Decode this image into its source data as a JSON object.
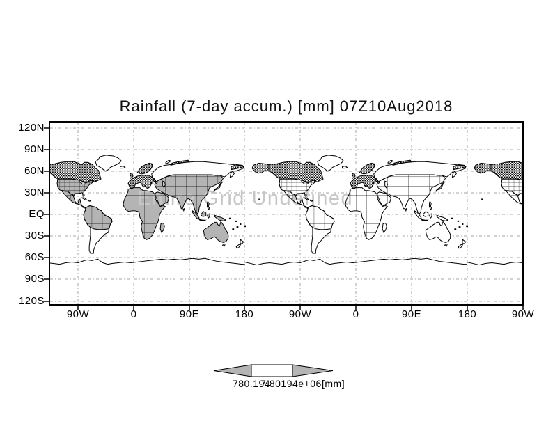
{
  "title": "Rainfall (7-day accum.) [mm] 07Z10Aug2018",
  "map": {
    "watermark": "Entire Grid Undefined"
  },
  "axes": {
    "lat_labels": [
      "120N",
      "90N",
      "60N",
      "30N",
      "EQ",
      "30S",
      "60S",
      "90S",
      "120S"
    ],
    "lon_labels": [
      "90W",
      "0",
      "90E",
      "180",
      "90W",
      "0",
      "90E",
      "180",
      "90W"
    ]
  },
  "colorbar": {
    "left_value": "780.194",
    "right_value": "7.80194e+06",
    "unit": "[mm]"
  },
  "colors": {
    "land_gray": "#b4b4b4",
    "watermark_gray": "#c6c6c6",
    "gridline_gray": "#a4a4a4"
  },
  "chart_data": {
    "type": "heatmap",
    "title": "Rainfall (7-day accum.) [mm] 07Z10Aug2018",
    "subtitle_overlay": "Entire Grid Undefined",
    "projection": "equirectangular lat-lon world map, longitude wrapped twice",
    "x": {
      "label": "",
      "tick_labels": [
        "90W",
        "0",
        "90E",
        "180",
        "90W",
        "0",
        "90E",
        "180",
        "90W"
      ],
      "tick_degrees": [
        -90,
        0,
        90,
        180,
        270,
        360,
        450,
        540,
        630
      ]
    },
    "y": {
      "label": "",
      "tick_labels": [
        "120N",
        "90N",
        "60N",
        "30N",
        "EQ",
        "30S",
        "60S",
        "90S",
        "120S"
      ],
      "tick_degrees": [
        120,
        90,
        60,
        30,
        0,
        -30,
        -60,
        -90,
        -120
      ]
    },
    "grid": true,
    "series": [],
    "values_defined": false,
    "colorbar": {
      "min_label": "780.194",
      "max_label": "7.80194e+06",
      "unit": "[mm]",
      "style": "left arrow | white box | right arrow"
    }
  }
}
